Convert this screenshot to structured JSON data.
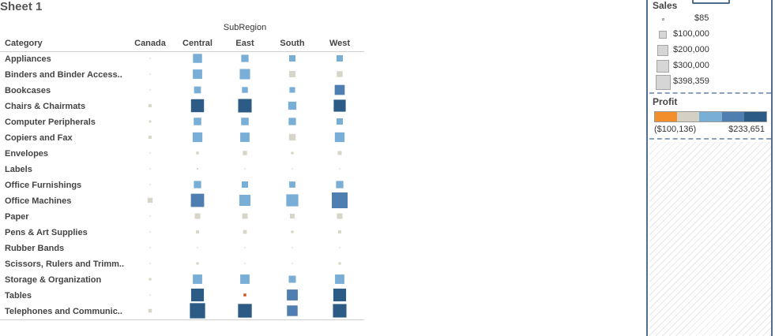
{
  "sheet_title": "Sheet 1",
  "chart_data": {
    "type": "heatmap",
    "column_group_title": "SubRegion",
    "row_header": "Category",
    "columns": [
      "Canada",
      "Central",
      "East",
      "South",
      "West"
    ],
    "rows": [
      {
        "label": "Appliances",
        "cells": [
          {
            "sales": 2000,
            "profit": -1000
          },
          {
            "sales": 130000,
            "profit": 50000
          },
          {
            "sales": 85000,
            "profit": 50000
          },
          {
            "sales": 65000,
            "profit": 45000
          },
          {
            "sales": 65000,
            "profit": 45000
          }
        ]
      },
      {
        "label": "Binders and Binder Access..",
        "cells": [
          {
            "sales": 2000,
            "profit": -1000
          },
          {
            "sales": 140000,
            "profit": 55000
          },
          {
            "sales": 170000,
            "profit": 55000
          },
          {
            "sales": 65000,
            "profit": 5000
          },
          {
            "sales": 55000,
            "profit": 5000
          }
        ]
      },
      {
        "label": "Bookcases",
        "cells": [
          {
            "sales": 2000,
            "profit": -1000
          },
          {
            "sales": 75000,
            "profit": 40000
          },
          {
            "sales": 55000,
            "profit": 40000
          },
          {
            "sales": 50000,
            "profit": 40000
          },
          {
            "sales": 160000,
            "profit": 130000
          }
        ]
      },
      {
        "label": "Chairs & Chairmats",
        "cells": [
          {
            "sales": 15000,
            "profit": 2000
          },
          {
            "sales": 270000,
            "profit": 200000
          },
          {
            "sales": 290000,
            "profit": 210000
          },
          {
            "sales": 105000,
            "profit": 55000
          },
          {
            "sales": 230000,
            "profit": 210000
          }
        ]
      },
      {
        "label": "Computer Peripherals",
        "cells": [
          {
            "sales": 8000,
            "profit": 2000
          },
          {
            "sales": 90000,
            "profit": 50000
          },
          {
            "sales": 90000,
            "profit": 50000
          },
          {
            "sales": 85000,
            "profit": 50000
          },
          {
            "sales": 65000,
            "profit": 45000
          }
        ]
      },
      {
        "label": "Copiers and Fax",
        "cells": [
          {
            "sales": 15000,
            "profit": 2000
          },
          {
            "sales": 150000,
            "profit": 55000
          },
          {
            "sales": 140000,
            "profit": 55000
          },
          {
            "sales": 70000,
            "profit": 5000
          },
          {
            "sales": 150000,
            "profit": 55000
          }
        ]
      },
      {
        "label": "Envelopes",
        "cells": [
          {
            "sales": 800,
            "profit": -1000
          },
          {
            "sales": 12000,
            "profit": 2000
          },
          {
            "sales": 30000,
            "profit": 5000
          },
          {
            "sales": 10000,
            "profit": 2000
          },
          {
            "sales": 25000,
            "profit": 5000
          }
        ]
      },
      {
        "label": "Labels",
        "cells": [
          {
            "sales": 200,
            "profit": -1000
          },
          {
            "sales": 4000,
            "profit": 1000
          },
          {
            "sales": 1500,
            "profit": 1000
          },
          {
            "sales": 1000,
            "profit": 1000
          },
          {
            "sales": 1000,
            "profit": 1000
          }
        ]
      },
      {
        "label": "Office Furnishings",
        "cells": [
          {
            "sales": 1500,
            "profit": -1000
          },
          {
            "sales": 85000,
            "profit": 50000
          },
          {
            "sales": 65000,
            "profit": 45000
          },
          {
            "sales": 60000,
            "profit": 45000
          },
          {
            "sales": 85000,
            "profit": 50000
          }
        ]
      },
      {
        "label": "Office Machines",
        "cells": [
          {
            "sales": 40000,
            "profit": 5000
          },
          {
            "sales": 280000,
            "profit": 150000
          },
          {
            "sales": 200000,
            "profit": 60000
          },
          {
            "sales": 230000,
            "profit": 60000
          },
          {
            "sales": 398359,
            "profit": 150000
          }
        ]
      },
      {
        "label": "Paper",
        "cells": [
          {
            "sales": 1500,
            "profit": -1000
          },
          {
            "sales": 50000,
            "profit": 8000
          },
          {
            "sales": 45000,
            "profit": 8000
          },
          {
            "sales": 35000,
            "profit": 5000
          },
          {
            "sales": 50000,
            "profit": 8000
          }
        ]
      },
      {
        "label": "Pens & Art Supplies",
        "cells": [
          {
            "sales": 500,
            "profit": -1000
          },
          {
            "sales": 15000,
            "profit": 2000
          },
          {
            "sales": 22000,
            "profit": 2000
          },
          {
            "sales": 10000,
            "profit": 2000
          },
          {
            "sales": 15000,
            "profit": 2000
          }
        ]
      },
      {
        "label": "Rubber Bands",
        "cells": [
          {
            "sales": 85,
            "profit": -500
          },
          {
            "sales": 1000,
            "profit": 500
          },
          {
            "sales": 600,
            "profit": 500
          },
          {
            "sales": 600,
            "profit": 500
          },
          {
            "sales": 1000,
            "profit": 500
          }
        ]
      },
      {
        "label": "Scissors, Rulers and Trimm..",
        "cells": [
          {
            "sales": 300,
            "profit": -500
          },
          {
            "sales": 10000,
            "profit": 1000
          },
          {
            "sales": 1000,
            "profit": 500
          },
          {
            "sales": 1500,
            "profit": 500
          },
          {
            "sales": 10000,
            "profit": 1000
          }
        ]
      },
      {
        "label": "Storage & Organization",
        "cells": [
          {
            "sales": 10000,
            "profit": 1000
          },
          {
            "sales": 140000,
            "profit": 55000
          },
          {
            "sales": 140000,
            "profit": 55000
          },
          {
            "sales": 80000,
            "profit": 50000
          },
          {
            "sales": 140000,
            "profit": 55000
          }
        ]
      },
      {
        "label": "Tables",
        "cells": [
          {
            "sales": 1500,
            "profit": -1000
          },
          {
            "sales": 260000,
            "profit": 200000
          },
          {
            "sales": 12000,
            "profit": -100136
          },
          {
            "sales": 190000,
            "profit": 130000
          },
          {
            "sales": 260000,
            "profit": 200000
          }
        ]
      },
      {
        "label": "Telephones and Communic..",
        "cells": [
          {
            "sales": 20000,
            "profit": 3000
          },
          {
            "sales": 370000,
            "profit": 233651
          },
          {
            "sales": 300000,
            "profit": 200000
          },
          {
            "sales": 180000,
            "profit": 130000
          },
          {
            "sales": 290000,
            "profit": 200000
          }
        ]
      }
    ],
    "size_encoding": {
      "field": "Sales",
      "max_value": 398359
    },
    "color_encoding": {
      "field": "Profit",
      "min": -100136,
      "max": 233651,
      "palette": [
        "#e8862b",
        "#d8d5c8",
        "#79aed6",
        "#4f7fb1",
        "#2c5b86"
      ]
    }
  },
  "legends": {
    "sales": {
      "title": "Sales",
      "entries": [
        {
          "label": "$85",
          "value": 85
        },
        {
          "label": "$100,000",
          "value": 100000
        },
        {
          "label": "$200,000",
          "value": 200000
        },
        {
          "label": "$300,000",
          "value": 300000
        },
        {
          "label": "$398,359",
          "value": 398359
        }
      ]
    },
    "profit": {
      "title": "Profit",
      "min_label": "($100,136)",
      "max_label": "$233,651",
      "colors": [
        "#f28e2b",
        "#d4d0c4",
        "#79aed6",
        "#4f7fb1",
        "#2c5b86"
      ]
    }
  }
}
